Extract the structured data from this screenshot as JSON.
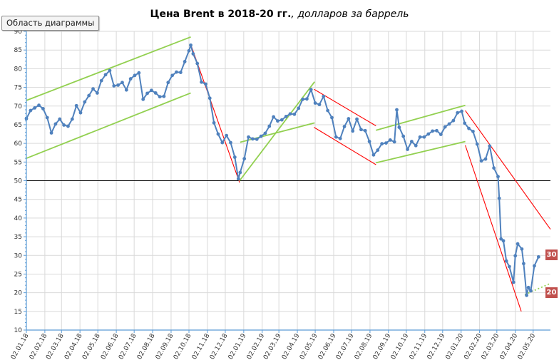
{
  "ui": {
    "area_tag": "Область диаграммы",
    "title_main": "Цена Brent в 2018-20 гг.",
    "title_sub": ", долларов за баррель"
  },
  "colors": {
    "price_line": "#4f81bd",
    "uptrend": "#92d050",
    "downtrend": "#ff0000",
    "badge": "#c0504d",
    "grid": "#d9d9d9",
    "axis": "#5b9bd5"
  },
  "chart_data": {
    "type": "line",
    "title": "Цена Brent в 2018-20 гг., долларов за баррель",
    "xlabel": "",
    "ylabel": "",
    "ylim": [
      10,
      90
    ],
    "grid": true,
    "legend": "none",
    "x_date_range": [
      "2018-01-02",
      "2020-05-31"
    ],
    "categories": [
      "02.01.18",
      "02.02.18",
      "02.03.18",
      "02.04.18",
      "02.05.18",
      "02.06.18",
      "02.07.18",
      "02.08.18",
      "02.09.18",
      "02.10.18",
      "02.11.18",
      "02.12.18",
      "02.01.19",
      "02.02.19",
      "02.03.19",
      "02.04.19",
      "02.05.19",
      "02.06.19",
      "02.07.19",
      "02.08.19",
      "02.09.19",
      "02.10.19",
      "02.11.19",
      "02.12.19",
      "02.01.20",
      "02.02.20",
      "02.03.20",
      "02.04.20",
      "02.05.20"
    ],
    "y_ticks": [
      10,
      15,
      20,
      25,
      30,
      35,
      40,
      45,
      50,
      55,
      60,
      65,
      70,
      75,
      80,
      85,
      90
    ],
    "series": [
      {
        "values": [
          [
            "2018-01-02",
            66.6
          ],
          [
            "2018-01-09",
            68.8
          ],
          [
            "2018-01-16",
            69.5
          ],
          [
            "2018-01-23",
            70.2
          ],
          [
            "2018-01-30",
            69.3
          ],
          [
            "2018-02-06",
            66.9
          ],
          [
            "2018-02-13",
            62.8
          ],
          [
            "2018-02-20",
            65.2
          ],
          [
            "2018-02-27",
            66.5
          ],
          [
            "2018-03-06",
            64.9
          ],
          [
            "2018-03-13",
            64.6
          ],
          [
            "2018-03-20",
            66.5
          ],
          [
            "2018-03-27",
            70.1
          ],
          [
            "2018-04-03",
            68.2
          ],
          [
            "2018-04-10",
            71.1
          ],
          [
            "2018-04-17",
            72.8
          ],
          [
            "2018-04-24",
            74.6
          ],
          [
            "2018-05-01",
            73.5
          ],
          [
            "2018-05-08",
            76.8
          ],
          [
            "2018-05-15",
            78.4
          ],
          [
            "2018-05-22",
            79.5
          ],
          [
            "2018-05-29",
            75.4
          ],
          [
            "2018-06-05",
            75.6
          ],
          [
            "2018-06-12",
            76.3
          ],
          [
            "2018-06-19",
            74.3
          ],
          [
            "2018-06-26",
            77.3
          ],
          [
            "2018-07-03",
            78.2
          ],
          [
            "2018-07-10",
            78.9
          ],
          [
            "2018-07-17",
            71.8
          ],
          [
            "2018-07-24",
            73.4
          ],
          [
            "2018-07-31",
            74.2
          ],
          [
            "2018-08-07",
            73.5
          ],
          [
            "2018-08-14",
            72.5
          ],
          [
            "2018-08-21",
            72.6
          ],
          [
            "2018-08-28",
            76.3
          ],
          [
            "2018-09-04",
            78.2
          ],
          [
            "2018-09-11",
            79.1
          ],
          [
            "2018-09-18",
            79.0
          ],
          [
            "2018-09-25",
            81.9
          ],
          [
            "2018-10-02",
            84.8
          ],
          [
            "2018-10-05",
            86.3
          ],
          [
            "2018-10-09",
            84.0
          ],
          [
            "2018-10-16",
            81.4
          ],
          [
            "2018-10-23",
            76.4
          ],
          [
            "2018-10-30",
            75.9
          ],
          [
            "2018-11-06",
            72.1
          ],
          [
            "2018-11-13",
            65.5
          ],
          [
            "2018-11-20",
            62.5
          ],
          [
            "2018-11-27",
            60.2
          ],
          [
            "2018-12-04",
            62.1
          ],
          [
            "2018-12-11",
            60.2
          ],
          [
            "2018-12-18",
            56.3
          ],
          [
            "2018-12-24",
            50.5
          ],
          [
            "2018-12-27",
            52.2
          ],
          [
            "2019-01-03",
            55.9
          ],
          [
            "2019-01-10",
            61.7
          ],
          [
            "2019-01-17",
            61.2
          ],
          [
            "2019-01-24",
            61.1
          ],
          [
            "2019-01-31",
            61.9
          ],
          [
            "2019-02-07",
            62.7
          ],
          [
            "2019-02-14",
            64.6
          ],
          [
            "2019-02-21",
            67.1
          ],
          [
            "2019-02-28",
            66.0
          ],
          [
            "2019-03-07",
            66.3
          ],
          [
            "2019-03-14",
            67.2
          ],
          [
            "2019-03-21",
            67.9
          ],
          [
            "2019-03-28",
            67.8
          ],
          [
            "2019-04-04",
            69.4
          ],
          [
            "2019-04-11",
            71.8
          ],
          [
            "2019-04-18",
            71.9
          ],
          [
            "2019-04-25",
            74.4
          ],
          [
            "2019-05-02",
            70.8
          ],
          [
            "2019-05-09",
            70.4
          ],
          [
            "2019-05-16",
            72.6
          ],
          [
            "2019-05-23",
            68.8
          ],
          [
            "2019-05-30",
            66.9
          ],
          [
            "2019-06-06",
            61.7
          ],
          [
            "2019-06-13",
            61.3
          ],
          [
            "2019-06-20",
            64.5
          ],
          [
            "2019-06-27",
            66.6
          ],
          [
            "2019-07-04",
            63.3
          ],
          [
            "2019-07-11",
            66.5
          ],
          [
            "2019-07-18",
            63.7
          ],
          [
            "2019-07-25",
            63.4
          ],
          [
            "2019-08-01",
            60.5
          ],
          [
            "2019-08-08",
            56.9
          ],
          [
            "2019-08-15",
            58.2
          ],
          [
            "2019-08-22",
            59.9
          ],
          [
            "2019-08-29",
            60.1
          ],
          [
            "2019-09-05",
            60.9
          ],
          [
            "2019-09-12",
            60.4
          ],
          [
            "2019-09-16",
            69.0
          ],
          [
            "2019-09-20",
            64.3
          ],
          [
            "2019-09-27",
            61.9
          ],
          [
            "2019-10-04",
            58.4
          ],
          [
            "2019-10-11",
            60.5
          ],
          [
            "2019-10-18",
            59.4
          ],
          [
            "2019-10-25",
            61.7
          ],
          [
            "2019-11-01",
            61.7
          ],
          [
            "2019-11-08",
            62.5
          ],
          [
            "2019-11-15",
            63.3
          ],
          [
            "2019-11-22",
            63.4
          ],
          [
            "2019-11-29",
            62.4
          ],
          [
            "2019-12-06",
            64.4
          ],
          [
            "2019-12-13",
            65.2
          ],
          [
            "2019-12-20",
            66.1
          ],
          [
            "2019-12-27",
            68.2
          ],
          [
            "2020-01-03",
            68.6
          ],
          [
            "2020-01-08",
            65.4
          ],
          [
            "2020-01-15",
            64.0
          ],
          [
            "2020-01-22",
            63.2
          ],
          [
            "2020-01-29",
            59.8
          ],
          [
            "2020-02-05",
            55.3
          ],
          [
            "2020-02-12",
            55.8
          ],
          [
            "2020-02-19",
            59.3
          ],
          [
            "2020-02-26",
            53.4
          ],
          [
            "2020-03-04",
            51.1
          ],
          [
            "2020-03-06",
            45.3
          ],
          [
            "2020-03-09",
            34.4
          ],
          [
            "2020-03-13",
            33.9
          ],
          [
            "2020-03-18",
            28.5
          ],
          [
            "2020-03-23",
            27.0
          ],
          [
            "2020-03-30",
            22.8
          ],
          [
            "2020-04-02",
            29.9
          ],
          [
            "2020-04-06",
            33.1
          ],
          [
            "2020-04-13",
            31.7
          ],
          [
            "2020-04-16",
            27.8
          ],
          [
            "2020-04-21",
            19.3
          ],
          [
            "2020-04-24",
            21.4
          ],
          [
            "2020-04-28",
            20.5
          ],
          [
            "2020-05-04",
            27.2
          ],
          [
            "2020-05-11",
            29.6
          ]
        ]
      }
    ],
    "annotations": [
      {
        "kind": "reference-line",
        "value": 50
      },
      {
        "kind": "uptrend",
        "from": [
          "2018-01-02",
          71.5
        ],
        "to": [
          "2018-10-05",
          88.5
        ]
      },
      {
        "kind": "uptrend",
        "from": [
          "2018-01-02",
          56.0
        ],
        "to": [
          "2018-10-05",
          73.5
        ]
      },
      {
        "kind": "downtrend",
        "from": [
          "2018-10-05",
          86.5
        ],
        "to": [
          "2018-12-26",
          49.5
        ]
      },
      {
        "kind": "uptrend",
        "from": [
          "2018-12-26",
          50.0
        ],
        "to": [
          "2019-05-01",
          76.5
        ]
      },
      {
        "kind": "uptrend",
        "from": [
          "2018-12-27",
          60.3
        ],
        "to": [
          "2019-05-01",
          65.5
        ]
      },
      {
        "kind": "downtrend",
        "from": [
          "2019-04-30",
          74.5
        ],
        "to": [
          "2019-08-12",
          64.7
        ]
      },
      {
        "kind": "downtrend",
        "from": [
          "2019-04-30",
          64.3
        ],
        "to": [
          "2019-08-12",
          54.3
        ]
      },
      {
        "kind": "uptrend",
        "from": [
          "2019-08-12",
          63.5
        ],
        "to": [
          "2020-01-09",
          70.2
        ]
      },
      {
        "kind": "uptrend",
        "from": [
          "2019-08-12",
          54.8
        ],
        "to": [
          "2020-01-09",
          60.5
        ]
      },
      {
        "kind": "downtrend",
        "from": [
          "2020-01-09",
          68.8
        ],
        "to": [
          "2020-05-31",
          37.0
        ]
      },
      {
        "kind": "downtrend",
        "from": [
          "2020-01-09",
          59.5
        ],
        "to": [
          "2020-04-12",
          15.0
        ]
      },
      {
        "kind": "support-dotted",
        "from": [
          "2020-04-18",
          19.5
        ],
        "to": [
          "2020-05-31",
          22.5
        ]
      }
    ],
    "badges": [
      {
        "text": "30",
        "value": 30
      },
      {
        "text": "20",
        "value": 20
      }
    ]
  }
}
